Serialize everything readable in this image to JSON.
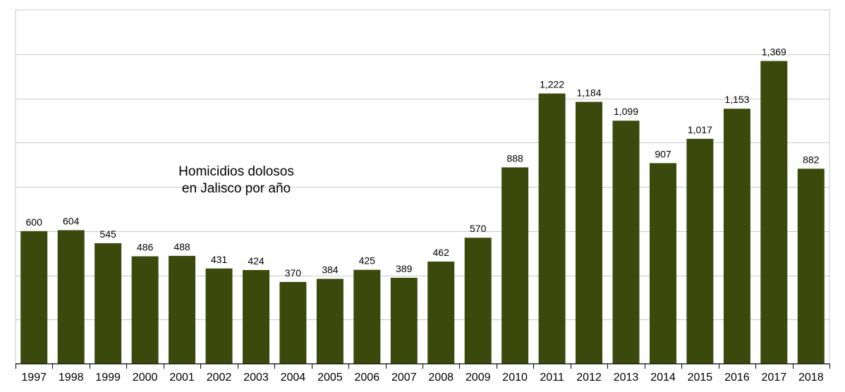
{
  "chart_data": {
    "type": "bar",
    "title_lines": [
      "Homicidios dolosos",
      "en Jalisco por año"
    ],
    "categories": [
      "1997",
      "1998",
      "1999",
      "2000",
      "2001",
      "2002",
      "2003",
      "2004",
      "2005",
      "2006",
      "2007",
      "2008",
      "2009",
      "2010",
      "2011",
      "2012",
      "2013",
      "2014",
      "2015",
      "2016",
      "2017",
      "2018"
    ],
    "values": [
      600,
      604,
      545,
      486,
      488,
      431,
      424,
      370,
      384,
      425,
      389,
      462,
      570,
      888,
      1222,
      1184,
      1099,
      907,
      1017,
      1153,
      1369,
      882
    ],
    "value_labels": [
      "600",
      "604",
      "545",
      "486",
      "488",
      "431",
      "424",
      "370",
      "384",
      "425",
      "389",
      "462",
      "570",
      "888",
      "1,222",
      "1,184",
      "1,099",
      "907",
      "1,017",
      "1,153",
      "1,369",
      "882"
    ],
    "ylim": [
      0,
      1600
    ],
    "grid": true,
    "bar_color": "#3b4a0c",
    "xlabel": "",
    "ylabel": ""
  }
}
